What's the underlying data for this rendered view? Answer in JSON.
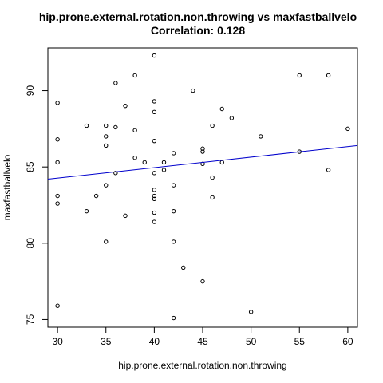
{
  "chart_data": {
    "type": "scatter",
    "title": "hip.prone.external.rotation.non.throwing vs maxfastballvelo",
    "subtitle": "Correlation: 0.128",
    "xlabel": "hip.prone.external.rotation.non.throwing",
    "ylabel": "maxfastballvelo",
    "xlim": [
      29,
      61
    ],
    "ylim": [
      74.5,
      92.8
    ],
    "x_ticks": [
      30,
      35,
      40,
      45,
      50,
      55,
      60
    ],
    "y_ticks": [
      75,
      80,
      85,
      90
    ],
    "grid": false,
    "regression_line": {
      "x": [
        29,
        61
      ],
      "y": [
        84.2,
        86.4
      ],
      "color": "#0000cc"
    },
    "points": [
      {
        "x": 30,
        "y": 89.2
      },
      {
        "x": 30,
        "y": 86.8
      },
      {
        "x": 30,
        "y": 85.3
      },
      {
        "x": 30,
        "y": 83.1
      },
      {
        "x": 30,
        "y": 82.6
      },
      {
        "x": 30,
        "y": 75.9
      },
      {
        "x": 33,
        "y": 87.7
      },
      {
        "x": 33,
        "y": 82.1
      },
      {
        "x": 34,
        "y": 83.1
      },
      {
        "x": 35,
        "y": 87.7
      },
      {
        "x": 35,
        "y": 87.0
      },
      {
        "x": 35,
        "y": 86.4
      },
      {
        "x": 35,
        "y": 83.8
      },
      {
        "x": 35,
        "y": 80.1
      },
      {
        "x": 36,
        "y": 90.5
      },
      {
        "x": 36,
        "y": 87.6
      },
      {
        "x": 36,
        "y": 84.6
      },
      {
        "x": 37,
        "y": 89.0
      },
      {
        "x": 37,
        "y": 81.8
      },
      {
        "x": 38,
        "y": 91.0
      },
      {
        "x": 38,
        "y": 87.4
      },
      {
        "x": 38,
        "y": 85.6
      },
      {
        "x": 39,
        "y": 85.3
      },
      {
        "x": 40,
        "y": 92.3
      },
      {
        "x": 40,
        "y": 89.3
      },
      {
        "x": 40,
        "y": 88.6
      },
      {
        "x": 40,
        "y": 86.7
      },
      {
        "x": 40,
        "y": 84.6
      },
      {
        "x": 40,
        "y": 83.5
      },
      {
        "x": 40,
        "y": 83.1
      },
      {
        "x": 40,
        "y": 82.9
      },
      {
        "x": 40,
        "y": 82.0
      },
      {
        "x": 40,
        "y": 81.4
      },
      {
        "x": 41,
        "y": 85.3
      },
      {
        "x": 41,
        "y": 84.8
      },
      {
        "x": 42,
        "y": 85.9
      },
      {
        "x": 42,
        "y": 83.8
      },
      {
        "x": 42,
        "y": 82.1
      },
      {
        "x": 42,
        "y": 80.1
      },
      {
        "x": 42,
        "y": 75.1
      },
      {
        "x": 43,
        "y": 78.4
      },
      {
        "x": 44,
        "y": 90.0
      },
      {
        "x": 45,
        "y": 86.2
      },
      {
        "x": 45,
        "y": 86.0
      },
      {
        "x": 45,
        "y": 85.2
      },
      {
        "x": 45,
        "y": 77.5
      },
      {
        "x": 46,
        "y": 87.7
      },
      {
        "x": 46,
        "y": 84.3
      },
      {
        "x": 46,
        "y": 83.0
      },
      {
        "x": 47,
        "y": 88.8
      },
      {
        "x": 47,
        "y": 85.3
      },
      {
        "x": 48,
        "y": 88.2
      },
      {
        "x": 50,
        "y": 75.5
      },
      {
        "x": 51,
        "y": 87.0
      },
      {
        "x": 55,
        "y": 91.0
      },
      {
        "x": 55,
        "y": 86.0
      },
      {
        "x": 58,
        "y": 91.0
      },
      {
        "x": 58,
        "y": 84.8
      },
      {
        "x": 60,
        "y": 87.5
      }
    ]
  }
}
